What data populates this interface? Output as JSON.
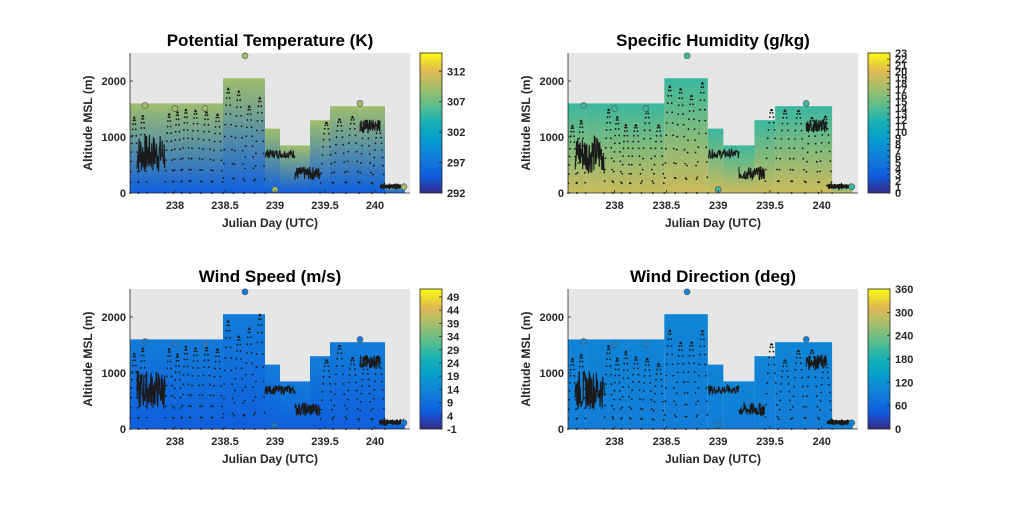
{
  "figure": {
    "background": "#ffffff",
    "plot_background": "#e6e6e6",
    "track_color": "#1a1a1a"
  },
  "chart_data": [
    {
      "type": "heatmap",
      "title": "Potential Temperature (K)",
      "xlabel": "Julian Day (UTC)",
      "ylabel": "Altitude MSL (m)",
      "xlim": [
        237.55,
        240.35
      ],
      "ylim": [
        0,
        2500
      ],
      "xticks": [
        238,
        238.5,
        239,
        239.5,
        240
      ],
      "xtick_labels": [
        "238",
        "238.5",
        "239",
        "239.5",
        "240"
      ],
      "yticks": [
        0,
        1000,
        2000
      ],
      "ytick_labels": [
        "0",
        "1000",
        "2000"
      ],
      "colorbar": {
        "min": 292,
        "max": 315,
        "ticks": [
          312,
          307,
          302,
          297,
          292
        ],
        "tick_labels": [
          "312",
          "307",
          "302",
          "297",
          "292"
        ]
      },
      "colormap": "parula",
      "field_low": 295,
      "field_high": 309,
      "dots_scale": 0.55
    },
    {
      "type": "heatmap",
      "title": "Specific Humidity (g/kg)",
      "xlabel": "Julian Day (UTC)",
      "ylabel": "Altitude MSL (m)",
      "xlim": [
        237.55,
        240.35
      ],
      "ylim": [
        0,
        2500
      ],
      "xticks": [
        238,
        238.5,
        239,
        239.5,
        240
      ],
      "xtick_labels": [
        "238",
        "238.5",
        "239",
        "239.5",
        "240"
      ],
      "yticks": [
        0,
        1000,
        2000
      ],
      "ytick_labels": [
        "0",
        "1000",
        "2000"
      ],
      "colorbar": {
        "min": 0,
        "max": 23,
        "ticks": [
          23,
          22,
          21,
          20,
          19,
          18,
          17,
          16,
          15,
          14,
          13,
          12,
          11,
          10,
          9,
          8,
          7,
          6,
          5,
          4,
          3,
          2,
          1,
          0
        ],
        "tick_labels": [
          "23",
          "22",
          "21",
          "20",
          "19",
          "18",
          "17",
          "16",
          "15",
          "14",
          "13",
          "12",
          "11",
          "10",
          "9",
          "8",
          "7",
          "6",
          "5",
          "4",
          "3",
          "2",
          "1",
          "0"
        ]
      },
      "colormap": "parula",
      "field_low": 19,
      "field_high": 13,
      "dots_scale": 0.55
    },
    {
      "type": "heatmap",
      "title": "Wind Speed (m/s)",
      "xlabel": "Julian Day (UTC)",
      "ylabel": "Altitude MSL (m)",
      "xlim": [
        237.55,
        240.35
      ],
      "ylim": [
        0,
        2500
      ],
      "xticks": [
        238,
        238.5,
        239,
        239.5,
        240
      ],
      "xtick_labels": [
        "238",
        "238.5",
        "239",
        "239.5",
        "240"
      ],
      "yticks": [
        0,
        1000,
        2000
      ],
      "ytick_labels": [
        "0",
        "1000",
        "2000"
      ],
      "colorbar": {
        "min": -1,
        "max": 52,
        "ticks": [
          49,
          44,
          39,
          34,
          29,
          24,
          19,
          14,
          9,
          4,
          -1
        ],
        "tick_labels": [
          "49",
          "44",
          "39",
          "34",
          "29",
          "24",
          "19",
          "14",
          "9",
          "4",
          "-1"
        ]
      },
      "colormap": "parula",
      "field_low": 6,
      "field_high": 12,
      "dots_scale": 0.55
    },
    {
      "type": "heatmap",
      "title": "Wind Direction (deg)",
      "xlabel": "Julian Day (UTC)",
      "ylabel": "Altitude MSL (m)",
      "xlim": [
        237.55,
        240.35
      ],
      "ylim": [
        0,
        2500
      ],
      "xticks": [
        238,
        238.5,
        239,
        239.5,
        240
      ],
      "xtick_labels": [
        "238",
        "238.5",
        "239",
        "239.5",
        "240"
      ],
      "yticks": [
        0,
        1000,
        2000
      ],
      "ytick_labels": [
        "0",
        "1000",
        "2000"
      ],
      "colorbar": {
        "min": 0,
        "max": 360,
        "ticks": [
          360,
          300,
          240,
          180,
          120,
          60,
          0
        ],
        "tick_labels": [
          "360",
          "300",
          "240",
          "180",
          "120",
          "60",
          "0"
        ]
      },
      "colormap": "parula",
      "field_low": 90,
      "field_high": 100,
      "dots_scale": 0.55
    }
  ],
  "coverage_blocks": [
    {
      "x0": 237.55,
      "x1": 237.72,
      "ymax": 1600
    },
    {
      "x0": 237.72,
      "x1": 238.12,
      "ymax": 1600
    },
    {
      "x0": 238.12,
      "x1": 238.48,
      "ymax": 1600
    },
    {
      "x0": 238.48,
      "x1": 238.9,
      "ymax": 2050
    },
    {
      "x0": 238.9,
      "x1": 239.05,
      "ymax": 1150
    },
    {
      "x0": 239.05,
      "x1": 239.35,
      "ymax": 850
    },
    {
      "x0": 239.35,
      "x1": 239.55,
      "ymax": 1300
    },
    {
      "x0": 239.55,
      "x1": 240.1,
      "ymax": 1550
    },
    {
      "x0": 240.1,
      "x1": 240.3,
      "ymax": 150
    }
  ],
  "flight_tracks": [
    {
      "x0": 237.55,
      "x1": 237.72,
      "kind": "profile",
      "peak": 1550,
      "n": 2
    },
    {
      "x0": 237.62,
      "x1": 237.9,
      "kind": "noisy",
      "base": 700,
      "amp": 350
    },
    {
      "x0": 237.9,
      "x1": 238.15,
      "kind": "profile",
      "peak": 1500,
      "n": 3
    },
    {
      "x0": 238.15,
      "x1": 238.48,
      "kind": "profile",
      "peak": 1500,
      "n": 3
    },
    {
      "x0": 238.48,
      "x1": 238.9,
      "kind": "profile",
      "peak": 2050,
      "n": 4
    },
    {
      "x0": 238.9,
      "x1": 239.2,
      "kind": "noisy",
      "base": 700,
      "amp": 80
    },
    {
      "x0": 239.2,
      "x1": 239.45,
      "kind": "noisy",
      "base": 350,
      "amp": 120
    },
    {
      "x0": 239.45,
      "x1": 240.1,
      "kind": "profile",
      "peak": 1550,
      "n": 5
    },
    {
      "x0": 239.85,
      "x1": 240.05,
      "kind": "noisy",
      "base": 1200,
      "amp": 120
    },
    {
      "x0": 240.05,
      "x1": 240.3,
      "kind": "flat",
      "base": 120,
      "amp": 10
    }
  ],
  "markers": [
    {
      "x": 238.7,
      "y": 2450
    },
    {
      "x": 239.85,
      "y": 1600
    },
    {
      "x": 237.7,
      "y": 1560
    },
    {
      "x": 238.0,
      "y": 1510
    },
    {
      "x": 238.3,
      "y": 1510
    },
    {
      "x": 240.29,
      "y": 110
    },
    {
      "x": 239.0,
      "y": 60
    }
  ]
}
